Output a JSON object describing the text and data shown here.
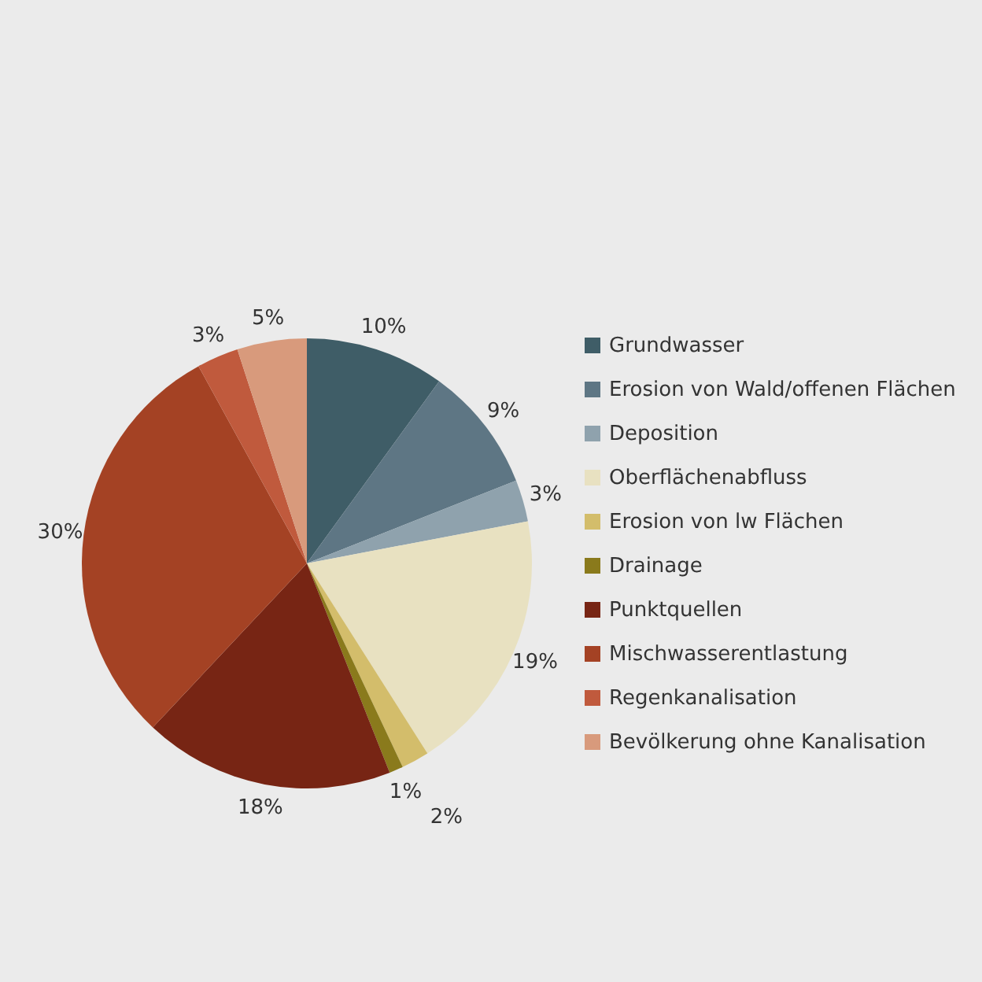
{
  "chart_data": {
    "type": "pie",
    "categories": [
      "Grundwasser",
      "Erosion von Wald/offenen Flächen",
      "Deposition",
      "Oberflächenabfluss",
      "Erosion von lw Flächen",
      "Drainage",
      "Punktquellen",
      "Mischwasserentlastung",
      "Regenkanalisation",
      "Bevölkerung ohne Kanalisation"
    ],
    "values": [
      10,
      9,
      3,
      19,
      2,
      1,
      18,
      30,
      3,
      5
    ],
    "value_labels": [
      "10%",
      "9%",
      "3%",
      "19%",
      "2%",
      "1%",
      "18%",
      "30%",
      "3%",
      "5%"
    ],
    "colors": [
      "#3f5d67",
      "#5e7684",
      "#8fa2ad",
      "#e8e1c1",
      "#d3bd6b",
      "#8a7a1c",
      "#772514",
      "#a44224",
      "#c05a3d",
      "#d89a7c"
    ],
    "legend": "right"
  }
}
